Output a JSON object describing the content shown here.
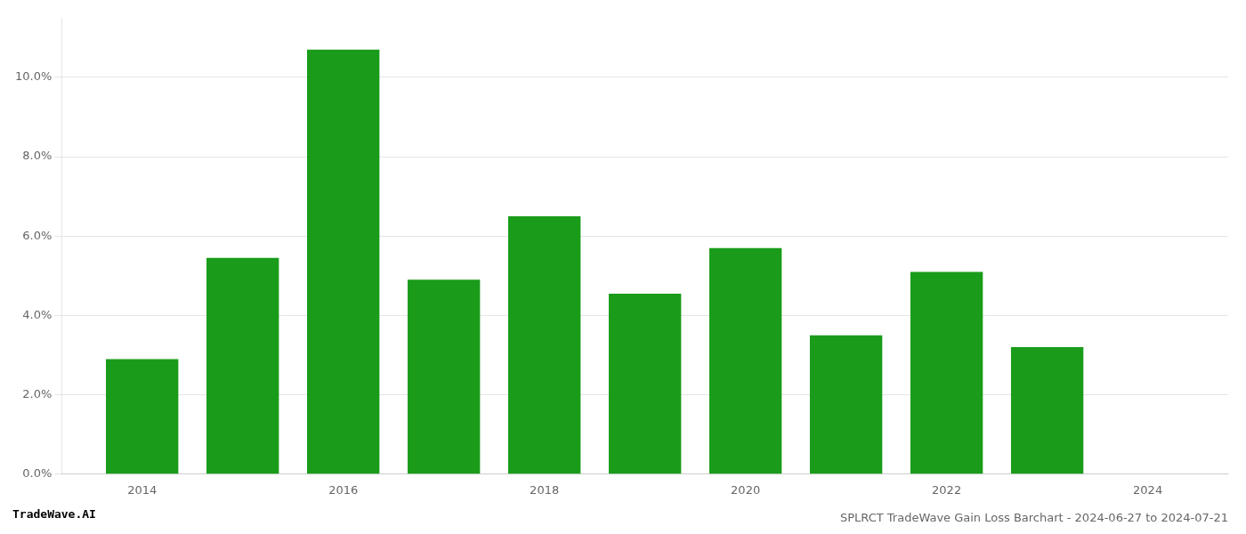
{
  "chart_data": {
    "type": "bar",
    "title": "SPLRCT TradeWave Gain Loss Barchart - 2024-06-27 to 2024-07-21",
    "annotations": [
      "TradeWave.AI"
    ],
    "x": [
      2014,
      2015,
      2016,
      2017,
      2018,
      2019,
      2020,
      2021,
      2022,
      2023
    ],
    "values": [
      0.029,
      0.0545,
      0.107,
      0.049,
      0.065,
      0.0455,
      0.057,
      0.035,
      0.051,
      0.032
    ],
    "color": "#1a9c1a",
    "xlim": [
      2013.2,
      2024.8
    ],
    "xticks": [
      2014,
      2016,
      2018,
      2020,
      2022,
      2024
    ],
    "ylim": [
      0,
      0.115
    ],
    "yticks": [
      {
        "value": 0.0,
        "label": "0.0%"
      },
      {
        "value": 0.02,
        "label": "2.0%"
      },
      {
        "value": 0.04,
        "label": "4.0%"
      },
      {
        "value": 0.06,
        "label": "6.0%"
      },
      {
        "value": 0.08,
        "label": "8.0%"
      },
      {
        "value": 0.1,
        "label": "10.0%"
      }
    ],
    "grid": "y"
  }
}
